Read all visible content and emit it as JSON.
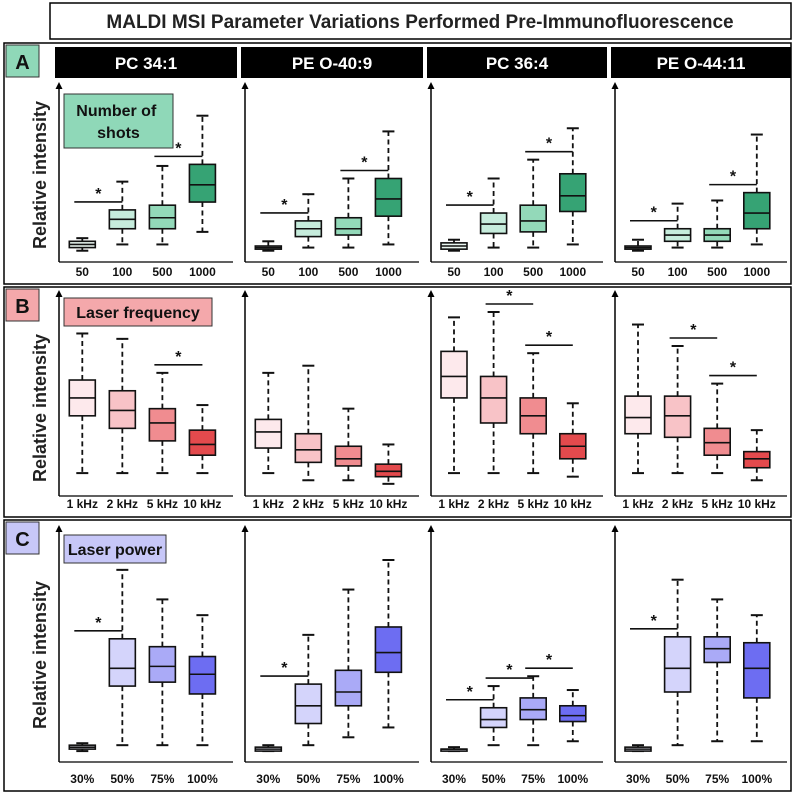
{
  "title": "MALDI MSI Parameter Variations Performed Pre-Immunofluorescence",
  "ylabel": "Relative intensity",
  "columns": [
    "PC 34:1",
    "PE O-40:9",
    "PC 36:4",
    "PE O-44:11"
  ],
  "chart_data": [
    {
      "type": "boxplot",
      "panel": "A",
      "parameter_label": "Number of shots",
      "categories": [
        "50",
        "100",
        "500",
        "1000"
      ],
      "colors": [
        "#eaf7f1",
        "#c6ecdc",
        "#93d9b9",
        "#36a374"
      ],
      "label_color": "#8fd8b8",
      "ylim": [
        0,
        100
      ],
      "significance": [
        [
          0,
          1
        ],
        [
          2,
          3
        ]
      ],
      "lipids": [
        {
          "name": "PC 34:1",
          "boxes": [
            {
              "min": 4,
              "q1": 6,
              "median": 8,
              "q3": 10,
              "max": 12
            },
            {
              "min": 8,
              "q1": 18,
              "median": 24,
              "q3": 30,
              "max": 48
            },
            {
              "min": 8,
              "q1": 18,
              "median": 25,
              "q3": 33,
              "max": 58
            },
            {
              "min": 16,
              "q1": 35,
              "median": 46,
              "q3": 59,
              "max": 90
            }
          ]
        },
        {
          "name": "PE O-40:9",
          "boxes": [
            {
              "min": 4,
              "q1": 5,
              "median": 6,
              "q3": 7,
              "max": 10
            },
            {
              "min": 6,
              "q1": 13,
              "median": 18,
              "q3": 23,
              "max": 40
            },
            {
              "min": 6,
              "q1": 14,
              "median": 18,
              "q3": 25,
              "max": 50
            },
            {
              "min": 8,
              "q1": 26,
              "median": 37,
              "q3": 50,
              "max": 80
            }
          ]
        },
        {
          "name": "PC 36:4",
          "boxes": [
            {
              "min": 4,
              "q1": 5,
              "median": 7,
              "q3": 9,
              "max": 11
            },
            {
              "min": 6,
              "q1": 15,
              "median": 21,
              "q3": 28,
              "max": 50
            },
            {
              "min": 6,
              "q1": 16,
              "median": 23,
              "q3": 33,
              "max": 62
            },
            {
              "min": 8,
              "q1": 29,
              "median": 39,
              "q3": 53,
              "max": 82
            }
          ]
        },
        {
          "name": "PE O-44:11",
          "boxes": [
            {
              "min": 4,
              "q1": 5,
              "median": 6,
              "q3": 7,
              "max": 11
            },
            {
              "min": 6,
              "q1": 10,
              "median": 14,
              "q3": 18,
              "max": 34
            },
            {
              "min": 6,
              "q1": 10,
              "median": 14,
              "q3": 18,
              "max": 36
            },
            {
              "min": 8,
              "q1": 18,
              "median": 28,
              "q3": 41,
              "max": 78
            }
          ]
        }
      ]
    },
    {
      "type": "boxplot",
      "panel": "B",
      "parameter_label": "Laser frequency",
      "categories": [
        "1 kHz",
        "2 kHz",
        "5 kHz",
        "10 kHz"
      ],
      "colors": [
        "#fde9ec",
        "#f8c3c7",
        "#f08c90",
        "#e34a4d"
      ],
      "label_color": "#f4a8ab",
      "ylim": [
        0,
        100
      ],
      "lipids": [
        {
          "name": "PC 34:1",
          "significance": [
            [
              2,
              3
            ]
          ],
          "boxes": [
            {
              "min": 10,
              "q1": 42,
              "median": 52,
              "q3": 62,
              "max": 88
            },
            {
              "min": 10,
              "q1": 35,
              "median": 45,
              "q3": 56,
              "max": 85
            },
            {
              "min": 10,
              "q1": 28,
              "median": 38,
              "q3": 46,
              "max": 66
            },
            {
              "min": 10,
              "q1": 20,
              "median": 26,
              "q3": 34,
              "max": 48
            }
          ]
        },
        {
          "name": "PE O-40:9",
          "significance": [],
          "boxes": [
            {
              "min": 10,
              "q1": 24,
              "median": 33,
              "q3": 40,
              "max": 66
            },
            {
              "min": 6,
              "q1": 16,
              "median": 23,
              "q3": 32,
              "max": 70
            },
            {
              "min": 6,
              "q1": 14,
              "median": 18,
              "q3": 25,
              "max": 46
            },
            {
              "min": 4,
              "q1": 8,
              "median": 11,
              "q3": 15,
              "max": 26
            }
          ]
        },
        {
          "name": "PC 36:4",
          "significance": [
            [
              1,
              2
            ],
            [
              2,
              3
            ]
          ],
          "boxes": [
            {
              "min": 10,
              "q1": 52,
              "median": 64,
              "q3": 78,
              "max": 97
            },
            {
              "min": 10,
              "q1": 38,
              "median": 52,
              "q3": 64,
              "max": 100
            },
            {
              "min": 10,
              "q1": 32,
              "median": 42,
              "q3": 52,
              "max": 77
            },
            {
              "min": 8,
              "q1": 18,
              "median": 25,
              "q3": 32,
              "max": 49
            }
          ]
        },
        {
          "name": "PE O-44:11",
          "significance": [
            [
              1,
              2
            ],
            [
              2,
              3
            ]
          ],
          "boxes": [
            {
              "min": 10,
              "q1": 32,
              "median": 41,
              "q3": 53,
              "max": 93
            },
            {
              "min": 10,
              "q1": 30,
              "median": 42,
              "q3": 53,
              "max": 81
            },
            {
              "min": 10,
              "q1": 20,
              "median": 27,
              "q3": 35,
              "max": 60
            },
            {
              "min": 6,
              "q1": 13,
              "median": 18,
              "q3": 22,
              "max": 34
            }
          ]
        }
      ]
    },
    {
      "type": "boxplot",
      "panel": "C",
      "parameter_label": "Laser power",
      "categories": [
        "30%",
        "50%",
        "75%",
        "100%"
      ],
      "colors": [
        "#f0f0fd",
        "#d4d4fb",
        "#aaaaf7",
        "#6d6df2"
      ],
      "label_color": "#c7c7f8",
      "ylim": [
        0,
        100
      ],
      "lipids": [
        {
          "name": "PC 34:1",
          "significance": [
            [
              0,
              1
            ]
          ],
          "boxes": [
            {
              "min": 3,
              "q1": 4,
              "median": 5,
              "q3": 6,
              "max": 7
            },
            {
              "min": 6,
              "q1": 36,
              "median": 45,
              "q3": 60,
              "max": 95
            },
            {
              "min": 6,
              "q1": 38,
              "median": 46,
              "q3": 56,
              "max": 80
            },
            {
              "min": 6,
              "q1": 32,
              "median": 42,
              "q3": 51,
              "max": 72
            }
          ]
        },
        {
          "name": "PE O-40:9",
          "significance": [
            [
              0,
              1
            ]
          ],
          "boxes": [
            {
              "min": 3,
              "q1": 3,
              "median": 4,
              "q3": 5,
              "max": 6
            },
            {
              "min": 6,
              "q1": 17,
              "median": 26,
              "q3": 37,
              "max": 62
            },
            {
              "min": 10,
              "q1": 26,
              "median": 33,
              "q3": 44,
              "max": 85
            },
            {
              "min": 15,
              "q1": 43,
              "median": 53,
              "q3": 66,
              "max": 100
            }
          ]
        },
        {
          "name": "PC 36:4",
          "significance": [
            [
              0,
              1
            ],
            [
              1,
              2
            ],
            [
              2,
              3
            ]
          ],
          "boxes": [
            {
              "min": 3,
              "q1": 3,
              "median": 4,
              "q3": 4,
              "max": 5
            },
            {
              "min": 6,
              "q1": 15,
              "median": 19,
              "q3": 25,
              "max": 36
            },
            {
              "min": 6,
              "q1": 19,
              "median": 24,
              "q3": 30,
              "max": 41
            },
            {
              "min": 8,
              "q1": 18,
              "median": 21,
              "q3": 26,
              "max": 34
            }
          ]
        },
        {
          "name": "PE O-44:11",
          "significance": [
            [
              0,
              1
            ]
          ],
          "boxes": [
            {
              "min": 3,
              "q1": 3,
              "median": 4,
              "q3": 5,
              "max": 6
            },
            {
              "min": 6,
              "q1": 33,
              "median": 45,
              "q3": 61,
              "max": 90
            },
            {
              "min": 8,
              "q1": 48,
              "median": 55,
              "q3": 61,
              "max": 80
            },
            {
              "min": 8,
              "q1": 30,
              "median": 45,
              "q3": 58,
              "max": 72
            }
          ]
        }
      ]
    }
  ]
}
